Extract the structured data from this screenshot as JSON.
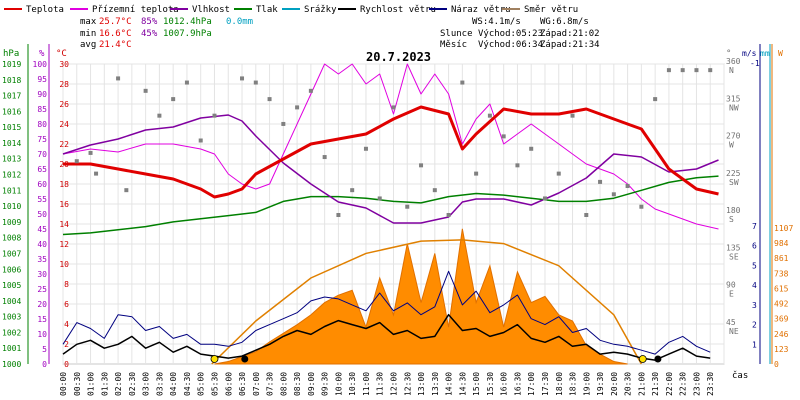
{
  "chart_data": {
    "type": "line",
    "title": "20.7.2023",
    "x_axis": {
      "label": "čas",
      "ticks": [
        "00:00",
        "00:30",
        "01:00",
        "01:30",
        "02:00",
        "02:30",
        "03:00",
        "03:30",
        "04:00",
        "04:30",
        "05:00",
        "05:30",
        "06:00",
        "06:30",
        "07:00",
        "07:30",
        "08:00",
        "08:30",
        "09:00",
        "09:30",
        "10:00",
        "10:30",
        "11:00",
        "11:30",
        "12:00",
        "12:30",
        "13:00",
        "13:30",
        "14:00",
        "14:30",
        "15:00",
        "15:30",
        "16:00",
        "16:30",
        "17:00",
        "17:30",
        "18:00",
        "18:30",
        "19:00",
        "19:30",
        "20:00",
        "20:30",
        "21:00",
        "21:30",
        "22:00",
        "22:30",
        "23:00",
        "23:30"
      ]
    },
    "axes": {
      "pressure": {
        "unit": "hPa",
        "ticks": [
          "1000",
          "1001",
          "1002",
          "1003",
          "1004",
          "1005",
          "1006",
          "1007",
          "1008",
          "1009",
          "1010",
          "1011",
          "1012",
          "1013",
          "1014",
          "1015",
          "1016",
          "1017",
          "1018",
          "1019"
        ],
        "color": "#008000"
      },
      "humidity": {
        "unit": "%",
        "ticks": [
          "0",
          "5",
          "10",
          "15",
          "20",
          "25",
          "30",
          "35",
          "40",
          "45",
          "50",
          "55",
          "60",
          "65",
          "70",
          "75",
          "80",
          "85",
          "90",
          "95",
          "100"
        ],
        "color": "#a000c0"
      },
      "temperature": {
        "unit": "°C",
        "ticks": [
          "0",
          "2",
          "4",
          "6",
          "8",
          "10",
          "12",
          "14",
          "16",
          "18",
          "20",
          "22",
          "24",
          "26",
          "28",
          "30"
        ],
        "color": "#d00000"
      },
      "direction": {
        "unit": "°",
        "ticks": [
          "45",
          "90",
          "135",
          "180",
          "225",
          "270",
          "315",
          "360"
        ],
        "labels": [
          "NE",
          "E",
          "SE",
          "S",
          "SW",
          "W",
          "NW",
          "N"
        ],
        "color": "#707070"
      },
      "wind": {
        "unit": "m/s",
        "ticks": [
          "1",
          "2",
          "3",
          "4",
          "5",
          "6",
          "7"
        ],
        "extra": "-1",
        "color": "#000080"
      },
      "rain": {
        "unit": "mm",
        "color": "#00a0c0"
      },
      "radiation": {
        "unit": "W",
        "ticks": [
          "0",
          "123",
          "246",
          "369",
          "492",
          "615",
          "738",
          "861",
          "984",
          "1107"
        ],
        "color": "#e07000"
      }
    },
    "legend": [
      {
        "name": "Teplota",
        "color": "#e00000"
      },
      {
        "name": "Přízemní teplota",
        "color": "#e000e0"
      },
      {
        "name": "Vlhkost",
        "color": "#8000a0"
      },
      {
        "name": "Tlak",
        "color": "#008000"
      },
      {
        "name": "Srážky",
        "color": "#00a0c0"
      },
      {
        "name": "Rychlost větru",
        "color": "#000000"
      },
      {
        "name": "Náraz větru",
        "color": "#000080"
      },
      {
        "name": "Směr větru",
        "color": "#a08060"
      }
    ],
    "stats": {
      "max_label": "max",
      "max_temp": "25.7°C",
      "max_hum": "85%",
      "max_press": "1012.4hPa",
      "rain_total": "0.0mm",
      "min_label": "min",
      "min_temp": "16.6°C",
      "min_hum": "45%",
      "min_press": "1007.9hPa",
      "avg_label": "avg",
      "avg_temp": "21.4°C"
    },
    "info": {
      "ws": "WS:4.1m/s",
      "wg": "WG:6.8m/s",
      "sun_label": "Slunce",
      "sunrise": "Východ:05:23",
      "sunset": "Západ:21:02",
      "moon_label": "Měsíc",
      "moonrise": "Východ:06:34",
      "moonset": "Západ:21:34"
    },
    "series": {
      "temperature": {
        "times": [
          0,
          1,
          2,
          3,
          4,
          5,
          5.5,
          6,
          6.5,
          7,
          8,
          9,
          10,
          11,
          12,
          13,
          14,
          14.5,
          15,
          16,
          17,
          18,
          19,
          20,
          21,
          22,
          23,
          23.8
        ],
        "values": [
          20,
          20,
          19.5,
          19,
          18.5,
          17.5,
          16.7,
          17,
          17.5,
          19,
          20.5,
          22,
          22.5,
          23,
          24.5,
          25.7,
          25,
          21.5,
          23,
          25.5,
          25,
          25,
          25.5,
          24.5,
          23.5,
          19.5,
          17.5,
          17
        ]
      },
      "humidity": {
        "times": [
          0,
          1,
          2,
          3,
          4,
          5,
          6,
          6.5,
          7,
          8,
          9,
          10,
          11,
          12,
          13,
          14,
          14.5,
          15,
          16,
          17,
          18,
          19,
          20,
          21,
          22,
          23,
          23.8
        ],
        "values": [
          70,
          73,
          75,
          78,
          79,
          82,
          83,
          81,
          76,
          67,
          60,
          54,
          52,
          47,
          47,
          49,
          54,
          55,
          55,
          53,
          57,
          62,
          70,
          69,
          64,
          65,
          68
        ]
      },
      "pressure": {
        "times": [
          0,
          1,
          2,
          3,
          4,
          5,
          6,
          7,
          8,
          9,
          10,
          11,
          12,
          13,
          14,
          15,
          16,
          17,
          18,
          19,
          20,
          21,
          22,
          23,
          23.8
        ],
        "values": [
          1008.2,
          1008.3,
          1008.5,
          1008.7,
          1009,
          1009.2,
          1009.4,
          1009.6,
          1010.3,
          1010.6,
          1010.6,
          1010.5,
          1010.3,
          1010.2,
          1010.6,
          1010.8,
          1010.7,
          1010.5,
          1010.3,
          1010.3,
          1010.5,
          1011,
          1011.5,
          1011.8,
          1011.9
        ]
      },
      "ground_temperature": {
        "times": [
          0,
          1,
          2,
          3,
          4,
          5,
          5.5,
          6,
          6.5,
          7,
          7.5,
          8,
          8.5,
          9,
          9.5,
          10,
          10.5,
          11,
          11.5,
          12,
          12.5,
          13,
          13.5,
          14,
          14.5,
          15,
          15.5,
          16,
          16.5,
          17,
          17.5,
          18,
          18.5,
          19,
          19.5,
          20,
          20.5,
          21,
          21.5,
          22,
          22.5,
          23,
          23.8
        ],
        "values": [
          21,
          21.5,
          21.2,
          22,
          22,
          21.5,
          21,
          19,
          18,
          17.5,
          18,
          21,
          24,
          27,
          30,
          29,
          30,
          28,
          29,
          25,
          30,
          27,
          29,
          27,
          22,
          24.5,
          26,
          22,
          23,
          24,
          23,
          22,
          21,
          20,
          19.5,
          19,
          18,
          16.5,
          15.5,
          15,
          14.5,
          14,
          13.5
        ]
      },
      "radiation": {
        "times": [
          5.5,
          6,
          6.5,
          7,
          7.5,
          8,
          8.5,
          9,
          9.5,
          10,
          10.5,
          11,
          11.5,
          12,
          12.5,
          13,
          13.5,
          14,
          14.5,
          15,
          15.5,
          16,
          16.5,
          17,
          17.5,
          18,
          18.5,
          19,
          19.5,
          20,
          20.5
        ],
        "values": [
          0,
          20,
          60,
          100,
          180,
          250,
          320,
          400,
          500,
          560,
          600,
          300,
          700,
          400,
          980,
          500,
          900,
          300,
          1100,
          500,
          800,
          300,
          750,
          500,
          550,
          400,
          350,
          150,
          80,
          20,
          0
        ]
      },
      "clear_sky": {
        "times": [
          5.4,
          7,
          9,
          11,
          13,
          14.5,
          16,
          18,
          20,
          21
        ],
        "values": [
          0,
          350,
          700,
          900,
          1000,
          1010,
          980,
          800,
          400,
          0
        ]
      },
      "wind_speed": {
        "times": [
          0,
          0.5,
          1,
          1.5,
          2,
          2.5,
          3,
          3.5,
          4,
          4.5,
          5,
          5.5,
          6,
          6.5,
          7,
          7.5,
          8,
          8.5,
          9,
          9.5,
          10,
          10.5,
          11,
          11.5,
          12,
          12.5,
          13,
          13.5,
          14,
          14.5,
          15,
          15.5,
          16,
          16.5,
          17,
          17.5,
          18,
          18.5,
          19,
          19.5,
          20,
          20.5,
          21,
          21.5,
          22,
          22.5,
          23,
          23.5
        ],
        "values": [
          0.5,
          1,
          1.2,
          0.8,
          1,
          1.4,
          0.8,
          1.1,
          0.6,
          0.9,
          0.5,
          0.4,
          0.3,
          0.4,
          0.7,
          1,
          1.4,
          1.7,
          1.5,
          1.9,
          2.2,
          2,
          1.8,
          2.1,
          1.5,
          1.7,
          1.3,
          1.4,
          2.5,
          1.7,
          1.8,
          1.4,
          1.6,
          2,
          1.3,
          1.1,
          1.4,
          0.9,
          1,
          0.5,
          0.6,
          0.5,
          0.3,
          0.2,
          0.5,
          0.8,
          0.4,
          0.3
        ]
      },
      "wind_gust": {
        "times": [
          0,
          0.5,
          1,
          1.5,
          2,
          2.5,
          3,
          3.5,
          4,
          4.5,
          5,
          5.5,
          6,
          6.5,
          7,
          7.5,
          8,
          8.5,
          9,
          9.5,
          10,
          10.5,
          11,
          11.5,
          12,
          12.5,
          13,
          13.5,
          14,
          14.5,
          15,
          15.5,
          16,
          16.5,
          17,
          17.5,
          18,
          18.5,
          19,
          19.5,
          20,
          20.5,
          21,
          21.5,
          22,
          22.5,
          23,
          23.5
        ],
        "values": [
          1,
          2.1,
          1.8,
          1.3,
          2.5,
          2.4,
          1.7,
          1.9,
          1.3,
          1.5,
          1,
          1,
          0.9,
          1.1,
          1.7,
          2,
          2.3,
          2.6,
          3.2,
          3.4,
          3.3,
          3,
          2.7,
          3.6,
          2.7,
          3.1,
          2.5,
          2.9,
          4.7,
          3,
          3.7,
          2.6,
          3,
          3.5,
          2.3,
          2,
          2.4,
          1.6,
          1.8,
          1.2,
          1,
          0.9,
          0.7,
          0.5,
          1.1,
          1.4,
          0.9,
          0.6
        ]
      },
      "wind_direction": {
        "times": [
          0.5,
          1,
          1.2,
          2,
          2.3,
          3,
          3.5,
          4,
          4.5,
          5,
          5.5,
          6.5,
          7,
          7.5,
          8,
          8.5,
          9,
          9.5,
          10,
          10.5,
          11,
          11.5,
          12,
          12.5,
          13,
          13.5,
          14,
          14.5,
          15,
          15.5,
          16,
          16.5,
          17,
          17.5,
          18,
          18.5,
          19,
          19.5,
          20,
          20.5,
          21,
          21.5,
          22,
          22.5,
          23,
          23.5
        ],
        "values": [
          245,
          255,
          230,
          345,
          210,
          330,
          300,
          320,
          340,
          270,
          300,
          345,
          340,
          320,
          290,
          310,
          330,
          250,
          180,
          210,
          260,
          200,
          310,
          190,
          240,
          210,
          180,
          340,
          230,
          300,
          275,
          240,
          260,
          200,
          230,
          300,
          180,
          220,
          205,
          215,
          190,
          320,
          355,
          355,
          355,
          355
        ]
      }
    }
  }
}
